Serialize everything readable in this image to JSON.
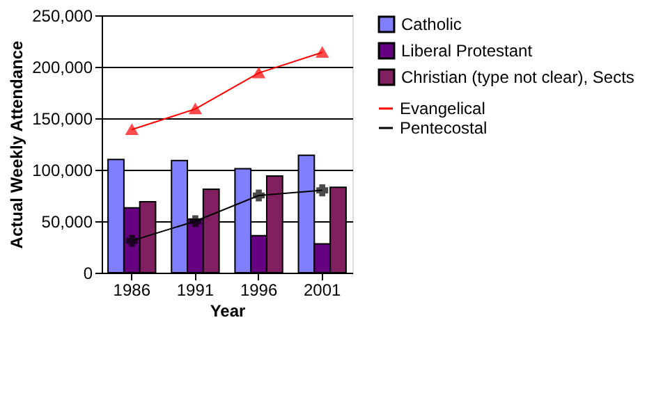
{
  "chart_data": {
    "type": "bar",
    "xlabel": "Year",
    "ylabel": "Actual Weekly Attendance",
    "categories": [
      "1986",
      "1991",
      "1996",
      "2001"
    ],
    "series": [
      {
        "name": "Catholic",
        "color": "#8080ff",
        "values": [
          110000,
          109000,
          101000,
          114000
        ]
      },
      {
        "name": "Liberal Protestant",
        "color": "#660080",
        "values": [
          63000,
          52000,
          36000,
          28000
        ]
      },
      {
        "name": "Christian (type not clear), Sects",
        "color": "#802060",
        "values": [
          69000,
          81000,
          94000,
          83000
        ]
      },
      {
        "name": "Evangelical",
        "type": "line",
        "color": "#ff0000",
        "marker": "triangle",
        "values": [
          139000,
          159000,
          194000,
          214000
        ]
      },
      {
        "name": "Pentecostal",
        "type": "line",
        "color": "#000000",
        "marker": "cross",
        "values": [
          31000,
          50000,
          75000,
          80000
        ]
      }
    ],
    "ylim": [
      0,
      250000
    ],
    "yticks": [
      0,
      {
        "value": 50000,
        "label": "50,000"
      },
      {
        "value": 100000,
        "label": "100,000"
      },
      {
        "value": 150000,
        "label": "150,000"
      },
      {
        "value": 200000,
        "label": "200,000"
      },
      {
        "value": 250000,
        "label": "250,000"
      }
    ],
    "grid": "y",
    "legend": "right"
  }
}
